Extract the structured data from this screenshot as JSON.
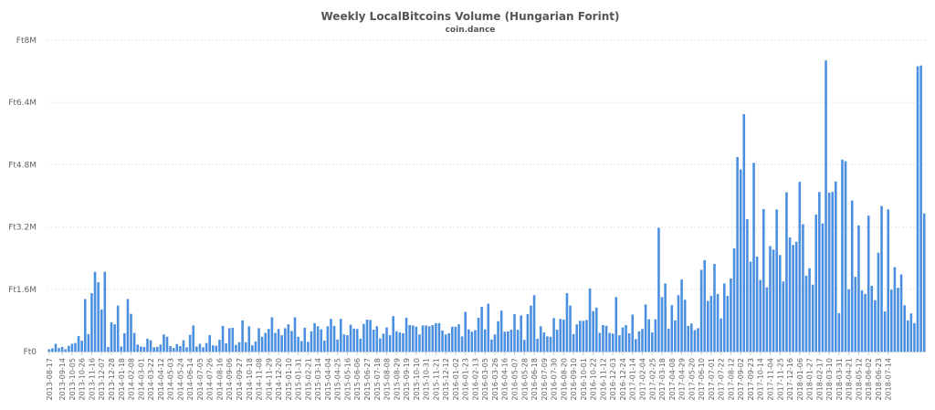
{
  "chart_data": {
    "type": "bar",
    "title": "Weekly LocalBitcoins Volume (Hungarian Forint)",
    "subtitle": "coin.dance",
    "ylim": [
      0,
      8000000
    ],
    "yticks": [
      {
        "value": 0,
        "label": "Ft0"
      },
      {
        "value": 1600000,
        "label": "Ft1.6M"
      },
      {
        "value": 3200000,
        "label": "Ft3.2M"
      },
      {
        "value": 4800000,
        "label": "Ft4.8M"
      },
      {
        "value": 6400000,
        "label": "Ft6.4M"
      },
      {
        "value": 8000000,
        "label": "Ft8M"
      }
    ],
    "grid": true,
    "bar_color": "#4a8fe0",
    "start_date": "2013-08-17",
    "x_tick_labels": [
      "2013-08-17",
      "2013-09-14",
      "2013-10-05",
      "2013-10-26",
      "2013-11-16",
      "2013-12-07",
      "2013-12-28",
      "2014-01-18",
      "2014-02-08",
      "2014-03-01",
      "2014-03-22",
      "2014-04-12",
      "2014-05-03",
      "2014-05-24",
      "2014-06-14",
      "2014-07-05",
      "2014-07-26",
      "2014-08-16",
      "2014-09-06",
      "2014-09-27",
      "2014-10-18",
      "2014-11-08",
      "2014-11-29",
      "2014-12-20",
      "2015-01-10",
      "2015-01-31",
      "2015-02-21",
      "2015-03-14",
      "2015-04-04",
      "2015-04-25",
      "2015-05-16",
      "2015-06-06",
      "2015-06-27",
      "2015-07-18",
      "2015-08-08",
      "2015-08-29",
      "2015-09-19",
      "2015-10-10",
      "2015-10-31",
      "2015-11-21",
      "2015-12-12",
      "2016-01-02",
      "2016-01-23",
      "2016-02-13",
      "2016-03-05",
      "2016-03-26",
      "2016-04-16",
      "2016-05-07",
      "2016-05-28",
      "2016-06-18",
      "2016-07-09",
      "2016-07-30",
      "2016-08-20",
      "2016-09-10",
      "2016-10-01",
      "2016-10-22",
      "2016-11-12",
      "2016-12-03",
      "2016-12-24",
      "2017-01-14",
      "2017-02-04",
      "2017-02-25",
      "2017-03-18",
      "2017-04-08",
      "2017-04-29",
      "2017-05-20",
      "2017-06-10",
      "2017-07-01",
      "2017-07-22",
      "2017-08-12",
      "2017-09-02",
      "2017-09-23",
      "2017-10-14",
      "2017-11-04",
      "2017-11-25",
      "2017-12-16",
      "2018-01-06",
      "2018-01-27",
      "2018-02-17",
      "2018-03-10",
      "2018-03-31",
      "2018-04-21",
      "2018-05-12",
      "2018-06-02",
      "2018-06-23",
      "2018-07-14"
    ],
    "values": [
      60000,
      80000,
      200000,
      90000,
      120000,
      60000,
      150000,
      200000,
      220000,
      400000,
      280000,
      1350000,
      450000,
      1500000,
      2050000,
      1780000,
      1080000,
      2050000,
      120000,
      750000,
      700000,
      1180000,
      130000,
      470000,
      1350000,
      970000,
      480000,
      180000,
      130000,
      120000,
      330000,
      290000,
      110000,
      120000,
      180000,
      440000,
      380000,
      140000,
      90000,
      190000,
      140000,
      290000,
      110000,
      430000,
      670000,
      130000,
      200000,
      110000,
      220000,
      420000,
      160000,
      150000,
      300000,
      660000,
      210000,
      600000,
      610000,
      170000,
      240000,
      800000,
      240000,
      650000,
      160000,
      260000,
      600000,
      380000,
      480000,
      580000,
      880000,
      480000,
      580000,
      420000,
      600000,
      700000,
      530000,
      880000,
      380000,
      270000,
      610000,
      250000,
      520000,
      730000,
      650000,
      570000,
      280000,
      650000,
      840000,
      660000,
      310000,
      840000,
      440000,
      420000,
      690000,
      590000,
      580000,
      330000,
      710000,
      820000,
      810000,
      560000,
      650000,
      340000,
      460000,
      620000,
      420000,
      910000,
      520000,
      490000,
      470000,
      870000,
      680000,
      670000,
      640000,
      440000,
      670000,
      670000,
      650000,
      680000,
      730000,
      730000,
      540000,
      440000,
      470000,
      640000,
      640000,
      700000,
      390000,
      1020000,
      570000,
      510000,
      550000,
      870000,
      1150000,
      570000,
      1230000,
      310000,
      440000,
      780000,
      1050000,
      510000,
      520000,
      560000,
      960000,
      560000,
      930000,
      300000,
      960000,
      1180000,
      1450000,
      330000,
      650000,
      490000,
      390000,
      380000,
      860000,
      560000,
      840000,
      820000,
      1500000,
      1180000,
      450000,
      700000,
      790000,
      790000,
      810000,
      1620000,
      1040000,
      1130000,
      480000,
      680000,
      660000,
      480000,
      460000,
      1400000,
      420000,
      620000,
      680000,
      470000,
      950000,
      320000,
      520000,
      580000,
      1210000,
      830000,
      490000,
      830000,
      3180000,
      1400000,
      1750000,
      590000,
      1190000,
      800000,
      1450000,
      1850000,
      1330000,
      660000,
      720000,
      550000,
      600000,
      2100000,
      2350000,
      1300000,
      1430000,
      2250000,
      1480000,
      850000,
      1750000,
      1430000,
      1880000,
      2650000,
      5000000,
      4680000,
      6100000,
      3400000,
      2310000,
      4850000,
      2440000,
      1840000,
      3660000,
      1650000,
      2710000,
      2620000,
      3650000,
      2480000,
      1800000,
      4090000,
      2930000,
      2740000,
      2820000,
      4360000,
      3270000,
      1950000,
      2140000,
      1720000,
      3520000,
      4100000,
      3290000,
      7480000,
      4080000,
      4100000,
      4370000,
      990000,
      4930000,
      4890000,
      1600000,
      3880000,
      1920000,
      3240000,
      1570000,
      1480000,
      3490000,
      1690000,
      1320000,
      2540000,
      3740000,
      1030000,
      3650000,
      1590000,
      2170000,
      1640000,
      1980000,
      1190000,
      800000,
      980000,
      730000,
      7330000,
      7350000,
      3550000
    ]
  }
}
